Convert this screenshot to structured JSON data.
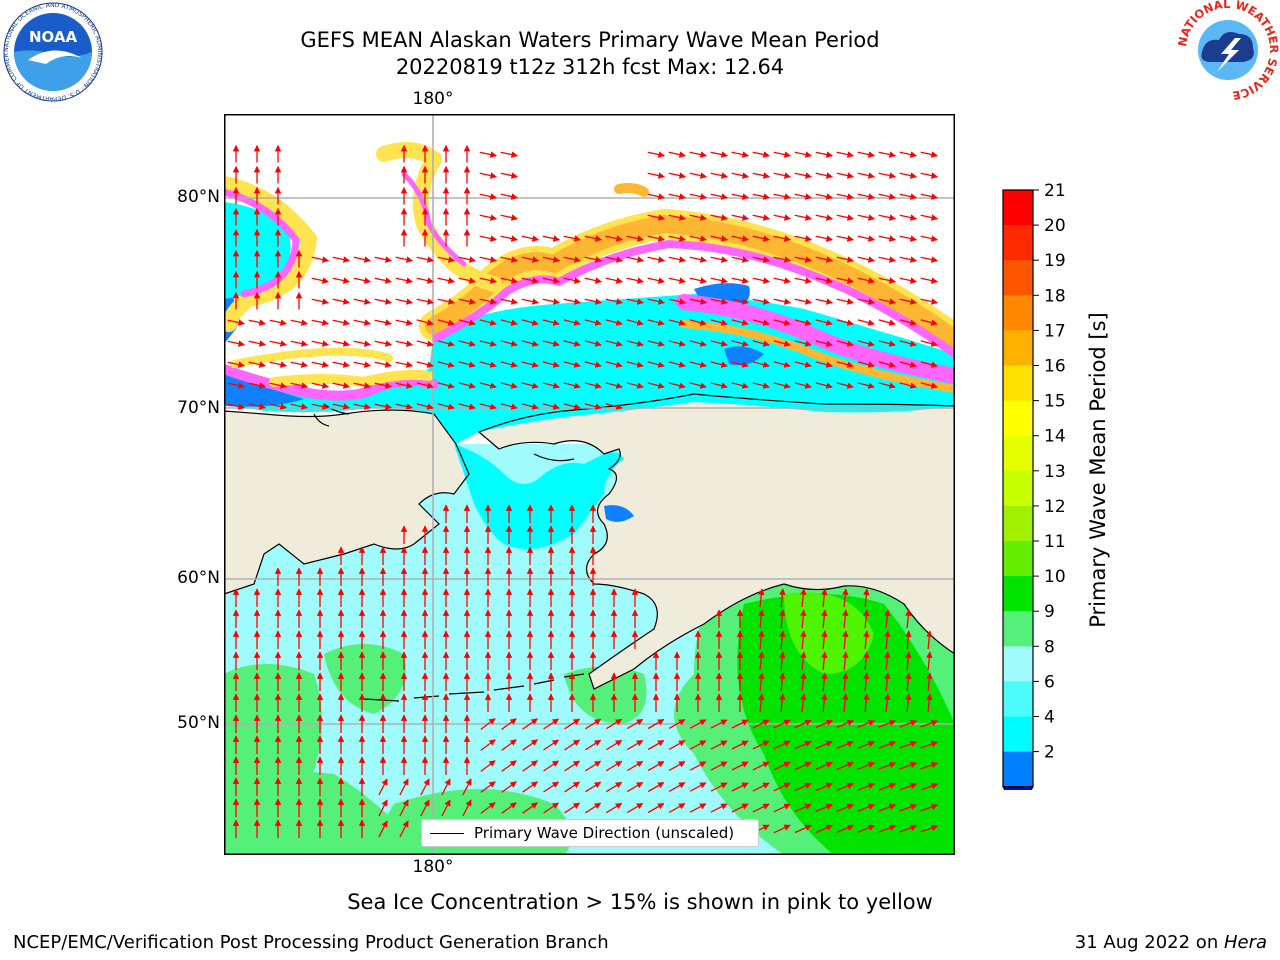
{
  "title": {
    "line1": "GEFS MEAN Alaskan Waters Primary Wave Mean Period",
    "line2": "20220819 t12z 312h fcst   Max: 12.64"
  },
  "map": {
    "longitude_labels": {
      "top": "180°",
      "bottom": "180°"
    },
    "latitude_labels": [
      "80°N",
      "70°N",
      "60°N",
      "50°N"
    ],
    "colors": {
      "land": "#efecdc",
      "ocean_main": "#a0fcfc",
      "ocean_cyan": "#00ffff",
      "ocean_green_light": "#54f07a",
      "ocean_green": "#00e400",
      "ocean_green_bright": "#4ef500",
      "ocean_blue": "#0f80ff",
      "ice_pink": "#ff66ff",
      "ice_orange": "#ffb632",
      "ice_yellow": "#ffe450",
      "arrow": "#ff0000",
      "grid": "#b0b0b0"
    }
  },
  "colorbar": {
    "label": "Primary Wave Mean Period [s]",
    "ticks": [
      "21",
      "20",
      "19",
      "18",
      "17",
      "16",
      "15",
      "14",
      "13",
      "12",
      "11",
      "10",
      "9",
      "8",
      "6",
      "4",
      "2"
    ],
    "bands": [
      "#ff0000",
      "#ff2a00",
      "#ff5500",
      "#ff8800",
      "#ffb000",
      "#ffe000",
      "#ffff00",
      "#e6ff00",
      "#c8ff00",
      "#a0f000",
      "#66ee00",
      "#00e400",
      "#54f07a",
      "#a0fcfc",
      "#4cfcfc",
      "#00fcfc",
      "#0080ff"
    ],
    "extend_color": "#0000ff"
  },
  "legend": {
    "label": "Primary Wave Direction (unscaled)"
  },
  "ice_note": "Sea Ice Concentration > 15% is shown in pink to yellow",
  "footer": {
    "left": "NCEP/EMC/Verification Post Processing Product Generation Branch",
    "right_date": "31 Aug 2022 on ",
    "right_host": "Hera"
  },
  "logos": {
    "noaa": "NOAA",
    "noaa_ring_text": "NATIONAL OCEANIC AND ATMOSPHERIC ADMINISTRATION · U.S. DEPARTMENT OF COMMERCE",
    "nws_ring_text": "NATIONAL WEATHER SERVICE"
  }
}
